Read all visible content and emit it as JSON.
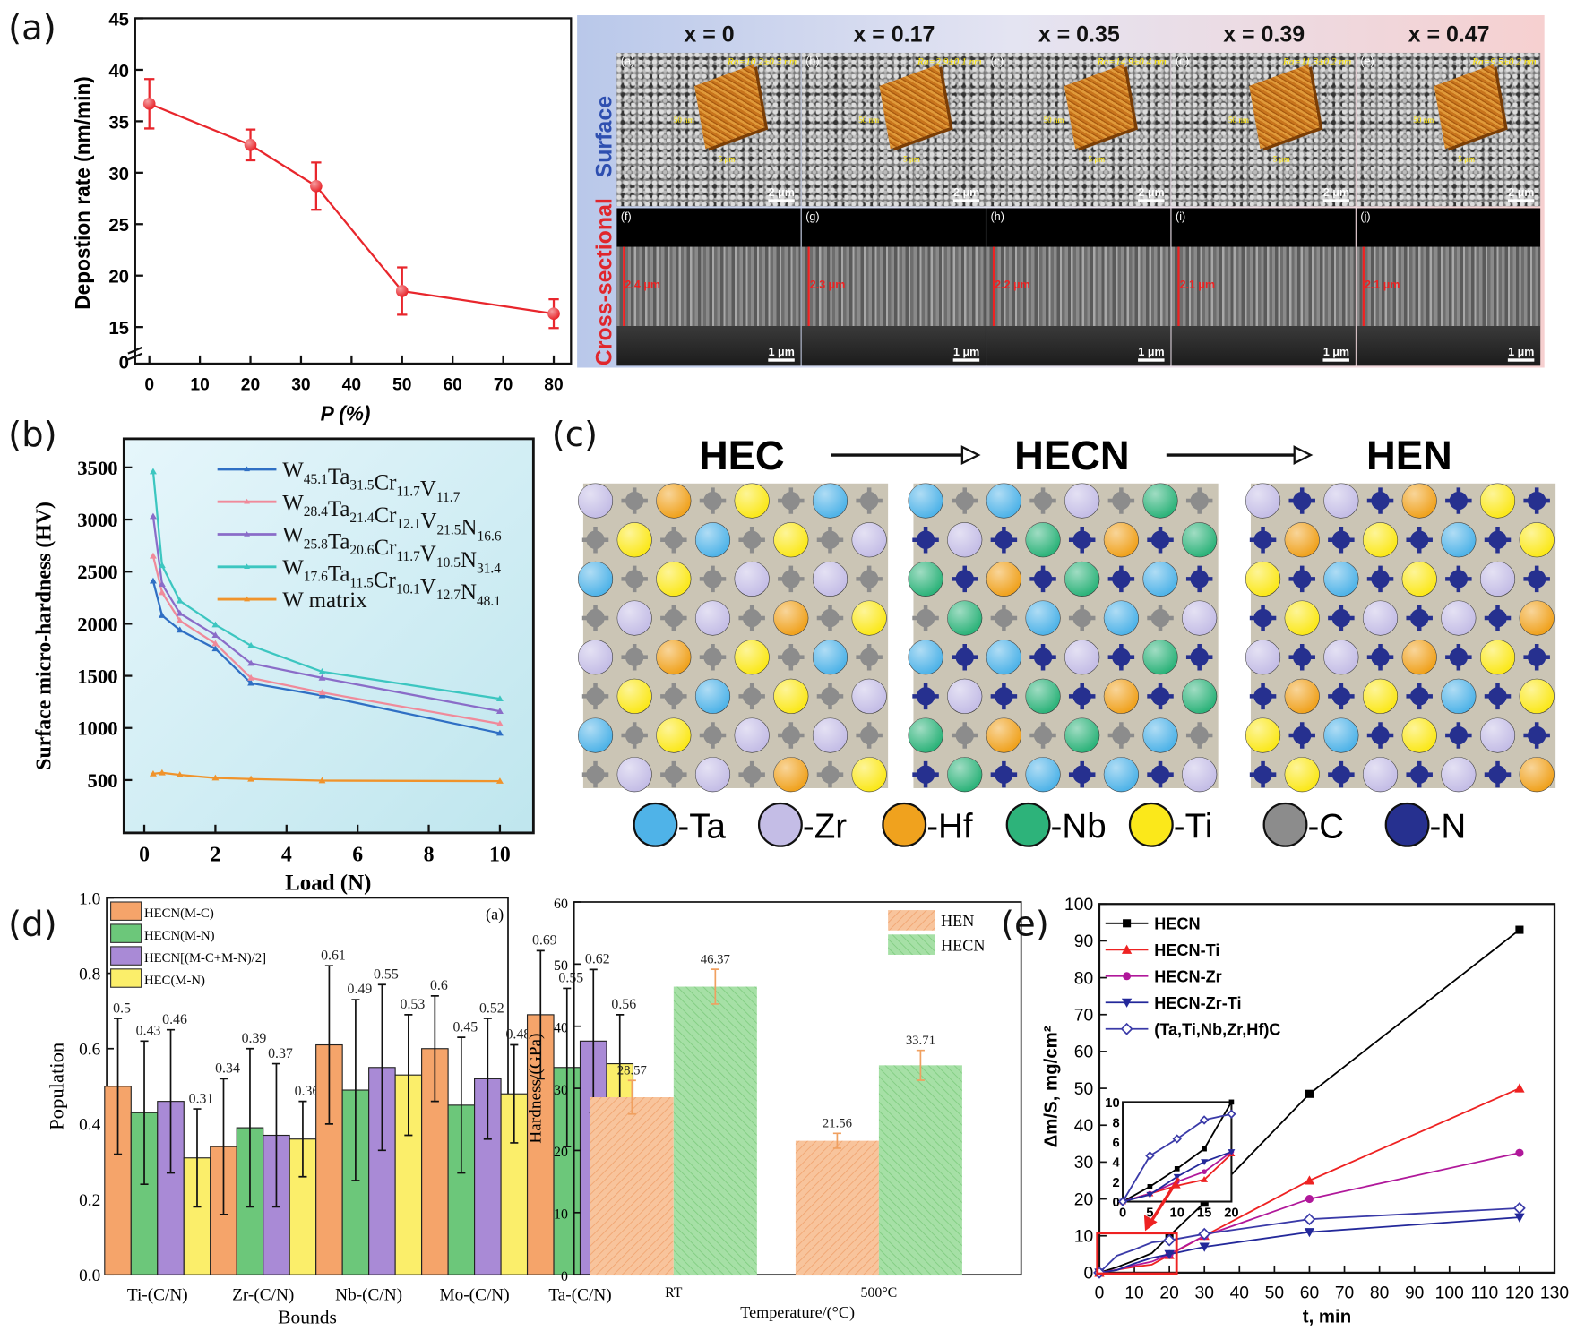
{
  "panel_labels": [
    "(a)",
    "(b)",
    "(c)",
    "(d)",
    "(e)"
  ],
  "sem": {
    "column_headers": [
      "x = 0",
      "x = 0.17",
      "x = 0.35",
      "x = 0.39",
      "x = 0.47"
    ],
    "row_labels": {
      "surface": "Surface",
      "cross": "Cross-sectional"
    },
    "surface_tiles": [
      {
        "tag": "(a)",
        "ra": "Ra=10.2±0.3 nm",
        "scale": "2 μm"
      },
      {
        "tag": "(b)",
        "ra": "Ra=2.9±0.1 nm",
        "scale": "2 μm"
      },
      {
        "tag": "(c)",
        "ra": "Ra=14.9±0.4 nm",
        "scale": "2 μm"
      },
      {
        "tag": "(d)",
        "ra": "Ra=11.3±0.2 nm",
        "scale": "2 μm"
      },
      {
        "tag": "(e)",
        "ra": "Ra=9.5±0.2 nm",
        "scale": "2 μm"
      }
    ],
    "afm_labels": {
      "height": "50 nm",
      "side": "5 μm"
    },
    "cross_tiles": [
      {
        "tag": "(f)",
        "thickness": "2.4 μm",
        "scale": "1 μm"
      },
      {
        "tag": "(g)",
        "thickness": "2.3 μm",
        "scale": "1 μm"
      },
      {
        "tag": "(h)",
        "thickness": "2.2 μm",
        "scale": "1 μm"
      },
      {
        "tag": "(i)",
        "thickness": "2.1 μm",
        "scale": "1 μm"
      },
      {
        "tag": "(j)",
        "thickness": "2.1 μm",
        "scale": "1 μm"
      }
    ]
  },
  "crystal": {
    "titles": [
      "HEC",
      "HECN",
      "HEN"
    ],
    "legend": [
      {
        "label": "-Ta",
        "color": "#4fb3e8"
      },
      {
        "label": "-Zr",
        "color": "#c4bde6"
      },
      {
        "label": "-Hf",
        "color": "#f0a21e"
      },
      {
        "label": "-Nb",
        "color": "#2db37a"
      },
      {
        "label": "-Ti",
        "color": "#fbe81a"
      },
      {
        "label": "-C",
        "color": "#8c8c8c"
      },
      {
        "label": "-N",
        "color": "#26308f"
      }
    ]
  },
  "chart_data": [
    {
      "id": "a",
      "type": "line",
      "xlabel": "P (%)",
      "ylabel": "Depostion rate (nm/min)",
      "xlim": [
        0,
        80
      ],
      "ylim": [
        15,
        45
      ],
      "y_axis_break": true,
      "xticks": [
        0,
        10,
        20,
        30,
        40,
        50,
        60,
        70,
        80
      ],
      "yticks": [
        15,
        20,
        25,
        30,
        35,
        40,
        45
      ],
      "ybreak_tick": "0",
      "color": "#e8262c",
      "x": [
        0,
        20,
        33,
        50,
        80
      ],
      "y": [
        36.7,
        32.7,
        28.7,
        18.5,
        16.3
      ],
      "err": [
        2.4,
        1.5,
        2.3,
        2.3,
        1.4
      ]
    },
    {
      "id": "b",
      "type": "line",
      "xlabel": "Load (N)",
      "ylabel": "Surface micro-hardness (HV)",
      "xlim": [
        -1,
        11
      ],
      "ylim": [
        250,
        3750
      ],
      "xticks": [
        0,
        2,
        4,
        6,
        8,
        10
      ],
      "yticks": [
        500,
        1000,
        1500,
        2000,
        2500,
        3000,
        3500
      ],
      "legend": "top-right",
      "x": [
        0.25,
        0.5,
        1,
        2,
        3,
        5,
        10
      ],
      "series": [
        {
          "name": "W45.1Ta31.5Cr11.7V11.7",
          "color": "#2f6fc4",
          "values": [
            2410,
            2080,
            1940,
            1760,
            1430,
            1310,
            950
          ]
        },
        {
          "name": "W28.4Ta21.4Cr12.1V21.5N16.6",
          "color": "#f08a9a",
          "values": [
            2650,
            2300,
            2030,
            1810,
            1480,
            1340,
            1040
          ]
        },
        {
          "name": "W25.8Ta20.6Cr11.7V10.5N31.4",
          "color": "#8a6cc8",
          "values": [
            3030,
            2380,
            2100,
            1890,
            1620,
            1480,
            1160
          ]
        },
        {
          "name": "W17.6Ta11.5Cr10.1V12.7N48.1",
          "color": "#3cc6c0",
          "values": [
            3460,
            2560,
            2220,
            1990,
            1790,
            1540,
            1280
          ]
        },
        {
          "name": "W matrix",
          "color": "#f0932b",
          "values": [
            560,
            570,
            550,
            520,
            510,
            495,
            490
          ]
        }
      ]
    },
    {
      "id": "d1",
      "type": "bar",
      "xlabel": "Bounds",
      "ylabel": "Population",
      "annotation": "(a)",
      "ylim": [
        0,
        1.0
      ],
      "yticks": [
        0.0,
        0.2,
        0.4,
        0.6,
        0.8,
        1.0
      ],
      "categories": [
        "Ti-(C/N)",
        "Zr-(C/N)",
        "Nb-(C/N)",
        "Mo-(C/N)",
        "Ta-(C/N)"
      ],
      "legend": "top-left",
      "series": [
        {
          "name": "HECN(M-C)",
          "color": "#f5a46a",
          "values": [
            0.5,
            0.34,
            0.61,
            0.6,
            0.69
          ],
          "err": [
            0.18,
            0.18,
            0.21,
            0.14,
            0.17
          ]
        },
        {
          "name": "HECN(M-N)",
          "color": "#6cc77a",
          "values": [
            0.43,
            0.39,
            0.49,
            0.45,
            0.55
          ],
          "err": [
            0.19,
            0.21,
            0.24,
            0.18,
            0.21
          ]
        },
        {
          "name": "HECN[(M-C+M-N)/2]",
          "color": "#a98ad6",
          "values": [
            0.46,
            0.37,
            0.55,
            0.52,
            0.62
          ],
          "err": [
            0.19,
            0.19,
            0.22,
            0.16,
            0.19
          ]
        },
        {
          "name": "HEC(M-N)",
          "color": "#fbee6a",
          "values": [
            0.31,
            0.36,
            0.53,
            0.48,
            0.56
          ],
          "err": [
            0.13,
            0.1,
            0.16,
            0.13,
            0.13
          ]
        }
      ],
      "labels": [
        [
          "0.5",
          "0.34",
          "0.61",
          "0.6",
          "0.69"
        ],
        [
          "0.43",
          "0.39",
          "0.49",
          "0.45",
          "0.55"
        ],
        [
          "0.46",
          "0.37",
          "0.55",
          "0.52",
          "0.62"
        ],
        [
          "0.31",
          "0.36",
          "0.53",
          "0.48",
          "0.56"
        ]
      ]
    },
    {
      "id": "d2",
      "type": "bar",
      "xlabel": "Temperature/(°C)",
      "ylabel": "Hardness/(GPa)",
      "ylim": [
        0,
        60
      ],
      "yticks": [
        0,
        10,
        20,
        30,
        40,
        50,
        60
      ],
      "categories": [
        "RT",
        "500°C"
      ],
      "legend": "top-right",
      "series": [
        {
          "name": "HEN",
          "color": "#f8b98a",
          "values": [
            28.57,
            21.56
          ],
          "err": [
            2.7,
            1.2
          ]
        },
        {
          "name": "HECN",
          "color": "#8fd68f",
          "values": [
            46.37,
            33.71
          ],
          "err": [
            2.8,
            2.4
          ]
        }
      ],
      "labels": [
        [
          "28.57",
          "21.56"
        ],
        [
          "46.37",
          "33.71"
        ]
      ]
    },
    {
      "id": "e",
      "type": "line",
      "xlabel": "t, min",
      "ylabel": "Δm/S, mg/cm²",
      "xlim": [
        0,
        130
      ],
      "ylim": [
        0,
        100
      ],
      "xticks": [
        0,
        10,
        20,
        30,
        40,
        50,
        60,
        70,
        80,
        90,
        100,
        110,
        120,
        130
      ],
      "yticks": [
        0,
        10,
        20,
        30,
        40,
        50,
        60,
        70,
        80,
        90,
        100
      ],
      "legend": "top-left",
      "x": [
        0,
        5,
        10,
        15,
        20,
        30,
        60,
        120
      ],
      "series": [
        {
          "name": "HECN",
          "color": "#000000",
          "marker": "square",
          "values": [
            0,
            1.5,
            3.3,
            5.3,
            10,
            19,
            48.5,
            93
          ]
        },
        {
          "name": "HECN-Ti",
          "color": "#ee2222",
          "marker": "triangle-up",
          "values": [
            0,
            0.8,
            1.6,
            2.2,
            4.8,
            10,
            25,
            50
          ]
        },
        {
          "name": "HECN-Zr",
          "color": "#b0189a",
          "marker": "circle",
          "values": [
            0,
            0.8,
            2.0,
            3.0,
            5.0,
            10,
            20,
            32.5
          ]
        },
        {
          "name": "HECN-Zr-Ti",
          "color": "#23289a",
          "marker": "triangle-down",
          "values": [
            0,
            0.7,
            2.5,
            4.0,
            5.0,
            7,
            11,
            15
          ]
        },
        {
          "name": "(Ta,Ti,Nb,Zr,Hf)C",
          "color": "#3a3aa8",
          "marker": "diamond-open",
          "values": [
            0,
            4.6,
            6.3,
            8.2,
            8.8,
            10.5,
            14.5,
            17.5
          ]
        }
      ],
      "inset": {
        "xlim": [
          0,
          20
        ],
        "ylim": [
          0,
          10
        ],
        "xticks": [
          0,
          5,
          10,
          15,
          20
        ],
        "yticks": [
          0,
          2,
          4,
          6,
          8,
          10
        ]
      }
    }
  ]
}
